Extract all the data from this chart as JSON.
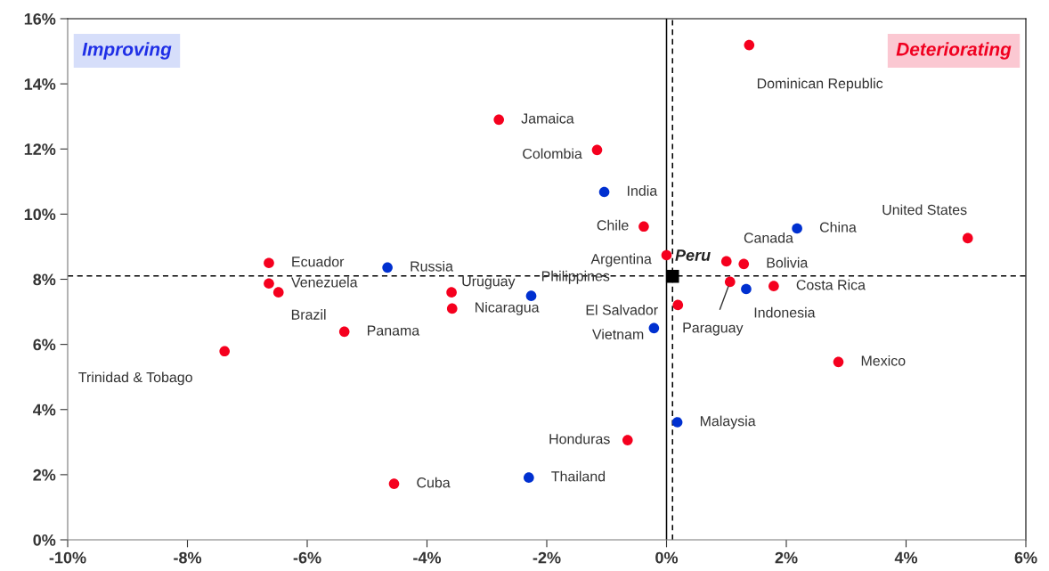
{
  "chart_data": {
    "type": "scatter",
    "marker": "circle",
    "xlim": [
      -10,
      6
    ],
    "ylim": [
      0,
      16
    ],
    "xticks": [
      {
        "value": -10,
        "label": "-10%"
      },
      {
        "value": -8,
        "label": "-8%"
      },
      {
        "value": -6,
        "label": "-6%"
      },
      {
        "value": -4,
        "label": "-4%"
      },
      {
        "value": -2,
        "label": "-2%"
      },
      {
        "value": 0,
        "label": "0%"
      },
      {
        "value": 2,
        "label": "2%"
      },
      {
        "value": 4,
        "label": "4%"
      },
      {
        "value": 6,
        "label": "6%"
      }
    ],
    "yticks": [
      {
        "value": 0,
        "label": "0%"
      },
      {
        "value": 2,
        "label": "2%"
      },
      {
        "value": 4,
        "label": "4%"
      },
      {
        "value": 6,
        "label": "6%"
      },
      {
        "value": 8,
        "label": "8%"
      },
      {
        "value": 10,
        "label": "10%"
      },
      {
        "value": 12,
        "label": "12%"
      },
      {
        "value": 14,
        "label": "14%"
      },
      {
        "value": 16,
        "label": "16%"
      }
    ],
    "series": [
      {
        "color": "#f5001e",
        "x": [
          1.38,
          -2.8,
          -1.16,
          -0.38,
          5.03,
          0.0,
          1.0,
          1.29,
          -6.64,
          -6.64,
          -6.48,
          -3.59,
          -3.58,
          -5.38,
          -7.38,
          0.19,
          1.06,
          1.79,
          2.87,
          -0.65,
          -4.55
        ],
        "values": [
          15.19,
          12.9,
          11.97,
          9.62,
          9.26,
          8.74,
          8.55,
          8.47,
          8.5,
          7.87,
          7.6,
          7.6,
          7.1,
          6.39,
          5.79,
          7.21,
          7.92,
          7.79,
          5.46,
          3.06,
          1.72
        ]
      },
      {
        "color": "#0030d0",
        "x": [
          -1.04,
          2.18,
          -4.66,
          -2.26,
          1.33,
          -0.21,
          0.18,
          -2.3
        ],
        "values": [
          10.68,
          9.56,
          8.36,
          7.49,
          7.7,
          6.5,
          3.61,
          1.91
        ]
      },
      {
        "color": "#000000",
        "marker": "square",
        "x": [
          0.1
        ],
        "values": [
          8.09
        ]
      }
    ],
    "ref_lines": [
      {
        "axis": "x",
        "value": 0,
        "line_style": "solid",
        "color": "#000000"
      },
      {
        "axis": "x",
        "value": 0.1,
        "line_style": "dashed",
        "color": "#000000"
      },
      {
        "axis": "y",
        "value": 8.1,
        "line_style": "dashed",
        "color": "#000000"
      }
    ],
    "annotations": [
      {
        "text": "Dominican Republic",
        "x": 1.38,
        "y": 15.19
      },
      {
        "text": "Jamaica",
        "x": -2.8,
        "y": 12.9
      },
      {
        "text": "Colombia",
        "x": -1.16,
        "y": 11.97
      },
      {
        "text": "India",
        "x": -1.04,
        "y": 10.68
      },
      {
        "text": "Chile",
        "x": -0.38,
        "y": 9.62
      },
      {
        "text": "China",
        "x": 2.18,
        "y": 9.56
      },
      {
        "text": "United States",
        "x": 5.03,
        "y": 9.26
      },
      {
        "text": "Argentina",
        "x": 0.0,
        "y": 8.74
      },
      {
        "text": "Canada",
        "x": 1.0,
        "y": 8.55
      },
      {
        "text": "Bolivia",
        "x": 1.29,
        "y": 8.47
      },
      {
        "text": "Ecuador",
        "x": -6.64,
        "y": 8.5
      },
      {
        "text": "Russia",
        "x": -4.66,
        "y": 8.36
      },
      {
        "text": "Venezuela",
        "x": -6.64,
        "y": 7.87
      },
      {
        "text": "Brazil",
        "x": -6.48,
        "y": 7.6
      },
      {
        "text": "Uruguay",
        "x": -3.59,
        "y": 7.6
      },
      {
        "text": "Philippines",
        "x": -2.26,
        "y": 7.49
      },
      {
        "text": "Nicaragua",
        "x": -3.58,
        "y": 7.1
      },
      {
        "text": "Panama",
        "x": -5.38,
        "y": 6.39
      },
      {
        "text": "Trinidad & Tobago",
        "x": -7.38,
        "y": 5.79
      },
      {
        "text": "El Salvador",
        "x": 0.19,
        "y": 7.21
      },
      {
        "text": "Paraguay",
        "x": 1.06,
        "y": 7.92
      },
      {
        "text": "Indonesia",
        "x": 1.33,
        "y": 7.7
      },
      {
        "text": "Costa Rica",
        "x": 1.79,
        "y": 7.79
      },
      {
        "text": "Vietnam",
        "x": -0.21,
        "y": 6.5
      },
      {
        "text": "Mexico",
        "x": 2.87,
        "y": 5.46
      },
      {
        "text": "Malaysia",
        "x": 0.18,
        "y": 3.61
      },
      {
        "text": "Honduras",
        "x": -0.65,
        "y": 3.06
      },
      {
        "text": "Thailand",
        "x": -2.3,
        "y": 1.91
      },
      {
        "text": "Cuba",
        "x": -4.55,
        "y": 1.72
      },
      {
        "text": "Peru",
        "x": 0.1,
        "y": 8.09
      },
      "Improving",
      "Deteriorating"
    ]
  }
}
